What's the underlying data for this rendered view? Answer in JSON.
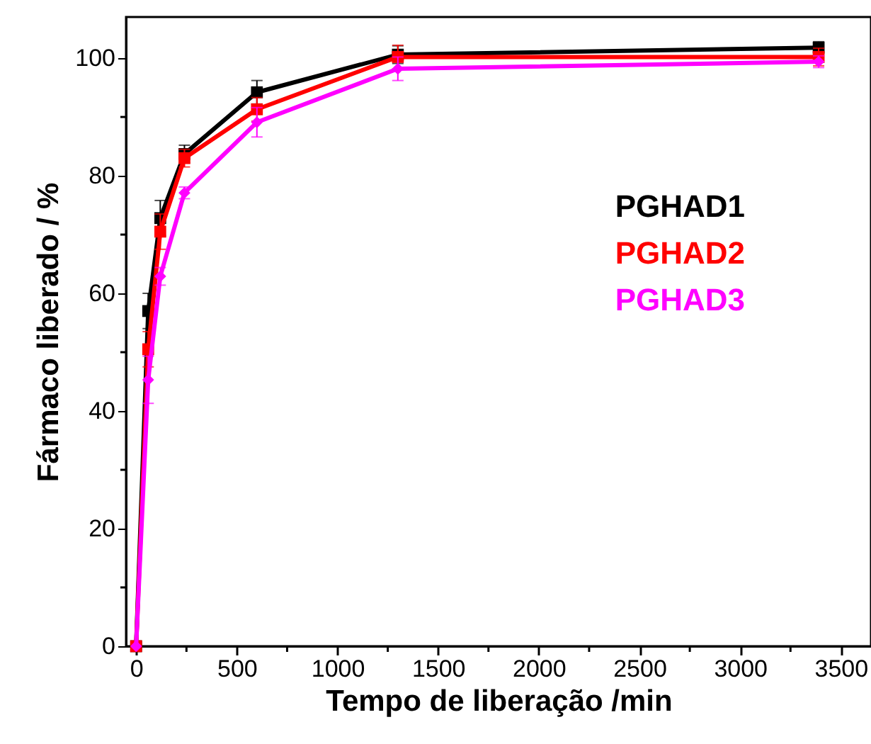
{
  "chart_data": {
    "type": "line",
    "xlabel": "Tempo de liberação /min",
    "ylabel": "Fármaco liberado / %",
    "x": [
      0,
      60,
      120,
      240,
      600,
      1300,
      3390
    ],
    "series": [
      {
        "name": "PGHAD1",
        "color": "#000000",
        "marker": "square",
        "values": [
          0,
          57,
          72.8,
          83.7,
          94.2,
          100.6,
          101.8
        ],
        "errors": [
          null,
          3,
          3,
          1.5,
          2,
          1.5,
          1
        ]
      },
      {
        "name": "PGHAD2",
        "color": "#ff0000",
        "marker": "square",
        "values": [
          0,
          50.5,
          70.5,
          83,
          91.3,
          100.2,
          100.2
        ],
        "errors": [
          null,
          3,
          3,
          1.5,
          2,
          2,
          1.5
        ]
      },
      {
        "name": "PGHAD3",
        "color": "#ff00ff",
        "marker": "diamond",
        "values": [
          0,
          45.3,
          62.9,
          77.1,
          89.1,
          98.2,
          99.4
        ],
        "errors": [
          null,
          4,
          1.5,
          1,
          2.5,
          2,
          1
        ]
      }
    ],
    "xlim": [
      -50,
      3650
    ],
    "ylim": [
      0,
      107
    ],
    "xticks": [
      0,
      {
        "value": 250,
        "label": null
      },
      500,
      {
        "value": 750,
        "label": null
      },
      1000,
      {
        "value": 1250,
        "label": null
      },
      1500,
      {
        "value": 1750,
        "label": null
      },
      2000,
      {
        "value": 2250,
        "label": null
      },
      2500,
      {
        "value": 2750,
        "label": null
      },
      3000,
      {
        "value": 3250,
        "label": null
      },
      3500
    ],
    "yticks": [
      0,
      {
        "value": 10,
        "label": null
      },
      20,
      {
        "value": 30,
        "label": null
      },
      40,
      {
        "value": 50,
        "label": null
      },
      60,
      {
        "value": 70,
        "label": null
      },
      80,
      {
        "value": 90,
        "label": null
      },
      100
    ],
    "grid": false,
    "line_style": "solid"
  }
}
